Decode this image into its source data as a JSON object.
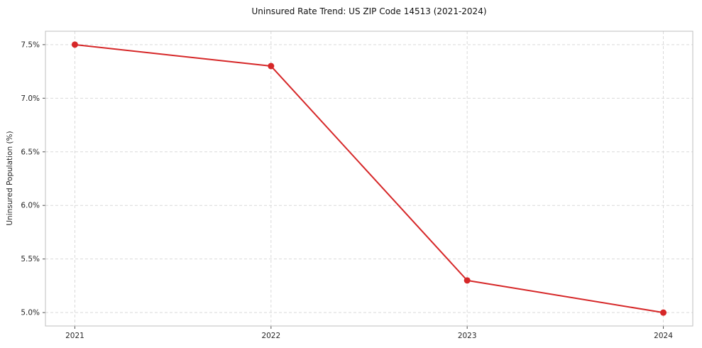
{
  "figure": {
    "background": "#ffffff"
  },
  "chart_data": {
    "type": "line",
    "title": "Uninsured Rate Trend: US ZIP Code 14513 (2021-2024)",
    "xlabel": "",
    "ylabel": "Uninsured Population (%)",
    "x": [
      2021,
      2022,
      2023,
      2024
    ],
    "values": [
      7.5,
      7.3,
      5.3,
      5.0
    ],
    "x_tick_labels": [
      "2021",
      "2022",
      "2023",
      "2024"
    ],
    "y_tick_values": [
      5.0,
      5.5,
      6.0,
      6.5,
      7.0,
      7.5
    ],
    "y_tick_labels": [
      "5.0%",
      "5.5%",
      "6.0%",
      "6.5%",
      "7.0%",
      "7.5%"
    ],
    "xlim": [
      2020.85,
      2024.15
    ],
    "ylim": [
      4.875,
      7.625
    ],
    "grid": true,
    "grid_style": "dashed",
    "legend": "none",
    "line_color": "#d62728",
    "line_width": 2,
    "marker": "circle",
    "marker_radius": 4.5,
    "colors": {
      "grid": "#d9d9d9",
      "spine": "#bfbfbf",
      "tick": "#4d4d4d",
      "tick_text": "#262626",
      "title_text": "#111111"
    }
  }
}
